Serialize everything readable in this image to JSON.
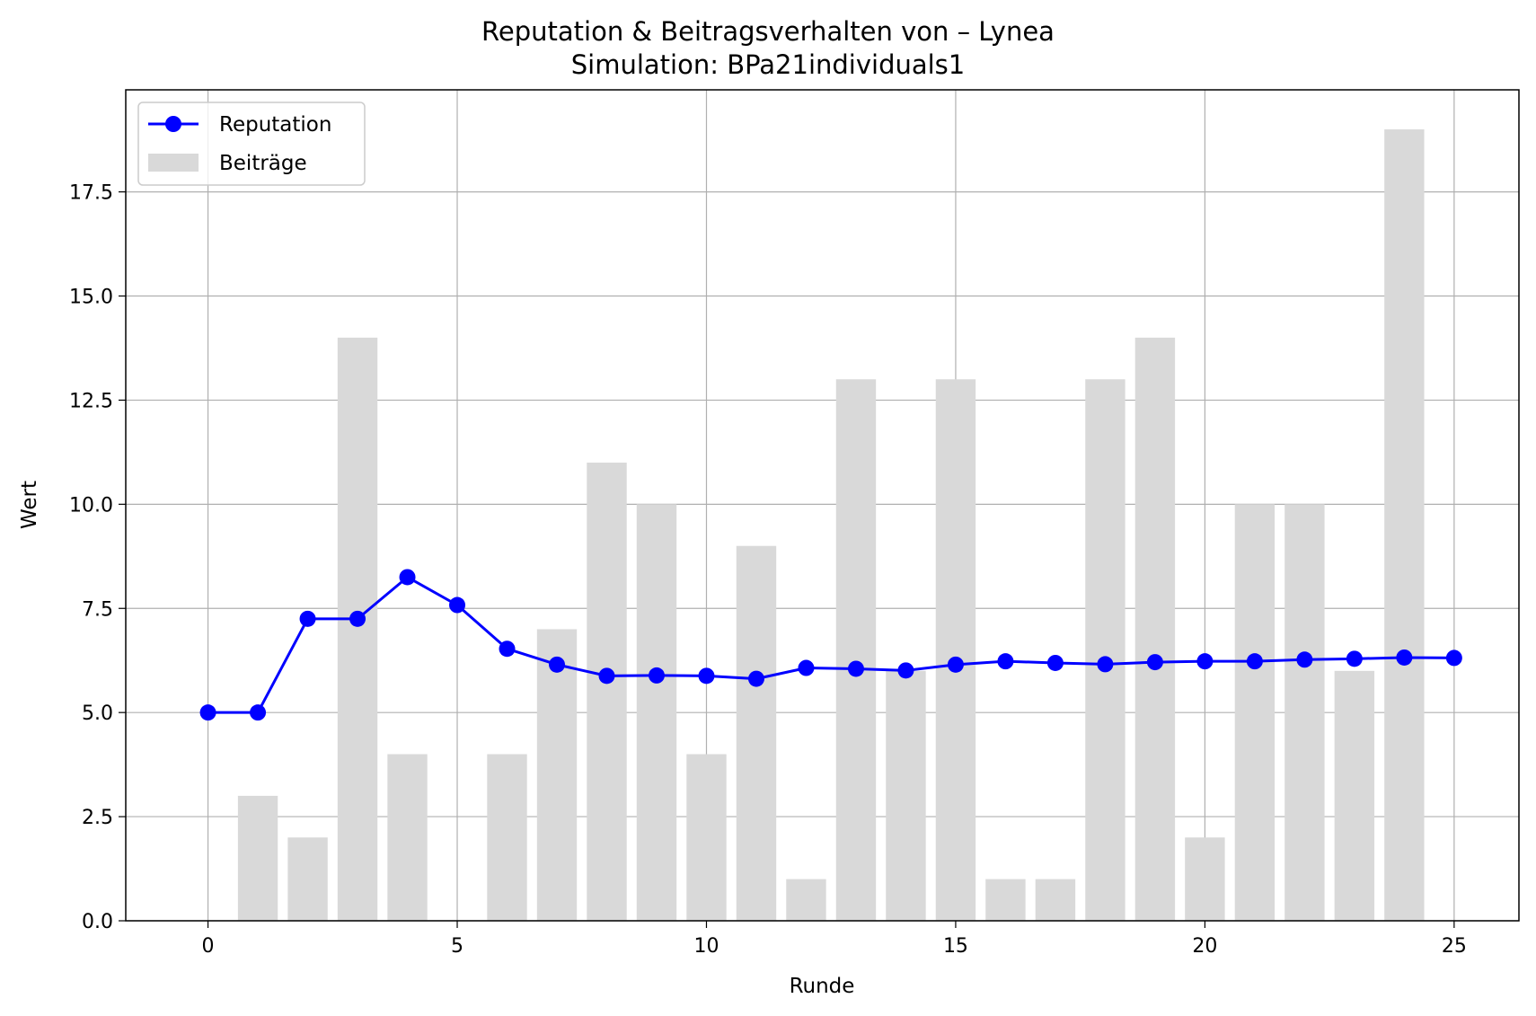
{
  "chart_data": {
    "type": "bar+line",
    "title": "Reputation & Beitragsverhalten von – Lynea",
    "subtitle": "Simulation: BPa21individuals1",
    "xlabel": "Runde",
    "ylabel": "Wert",
    "xlim": [
      -1.65,
      26.3
    ],
    "ylim": [
      0,
      19.95
    ],
    "x": [
      0,
      1,
      2,
      3,
      4,
      5,
      6,
      7,
      8,
      9,
      10,
      11,
      12,
      13,
      14,
      15,
      16,
      17,
      18,
      19,
      20,
      21,
      22,
      23,
      24,
      25
    ],
    "grid": true,
    "legend_position": "top-left",
    "x_ticks": [
      0,
      5,
      10,
      15,
      20,
      25
    ],
    "x_tick_labels": [
      "0",
      "5",
      "10",
      "15",
      "20",
      "25"
    ],
    "y_ticks": [
      0,
      2.5,
      5,
      7.5,
      10,
      12.5,
      15,
      17.5
    ],
    "y_tick_labels": [
      "0.0",
      "2.5",
      "5.0",
      "7.5",
      "10.0",
      "12.5",
      "15.0",
      "17.5"
    ],
    "series": [
      {
        "name": "Reputation",
        "kind": "line",
        "color": "#0000ff",
        "marker": "circle",
        "values": [
          5.0,
          5.0,
          7.25,
          7.25,
          8.25,
          7.58,
          6.53,
          6.15,
          5.88,
          5.89,
          5.88,
          5.81,
          6.07,
          6.05,
          6.01,
          6.15,
          6.23,
          6.19,
          6.16,
          6.21,
          6.23,
          6.23,
          6.27,
          6.29,
          6.32,
          6.31
        ]
      },
      {
        "name": "Beiträge",
        "kind": "bar",
        "color": "#d9d9d9",
        "values": [
          0,
          3,
          2,
          14,
          4,
          0,
          4,
          7,
          11,
          10,
          4,
          9,
          1,
          13,
          6,
          13,
          1,
          1,
          13,
          14,
          2,
          10,
          10,
          6,
          19,
          0
        ]
      }
    ]
  }
}
